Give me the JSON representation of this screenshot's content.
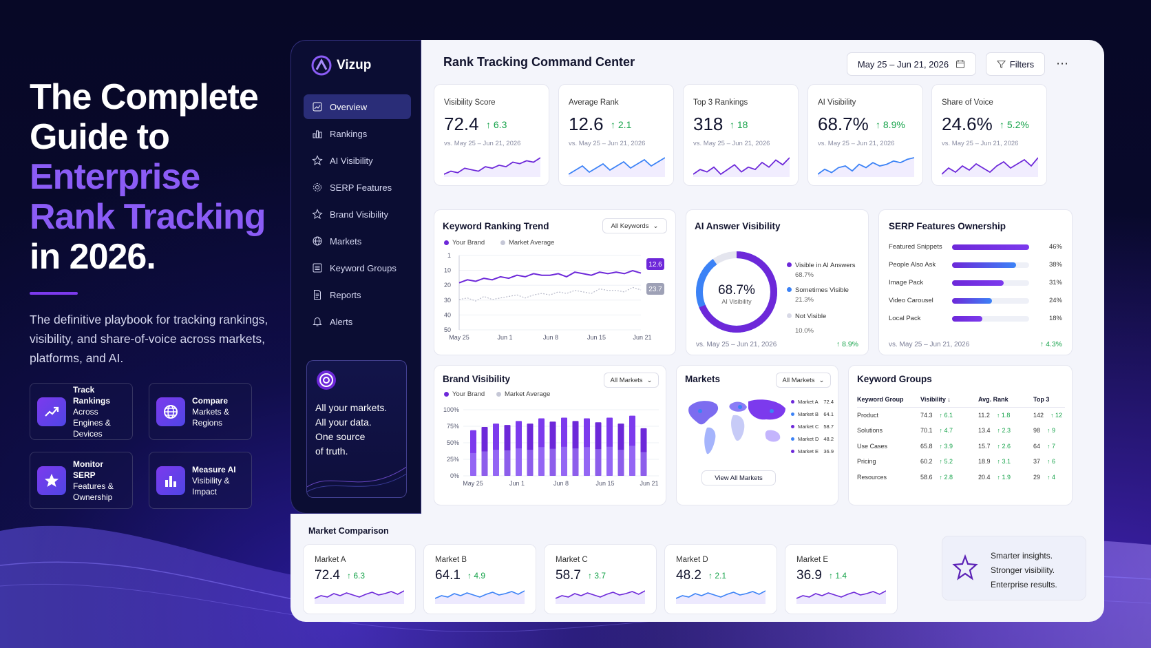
{
  "hero": {
    "title_line1": "The Complete",
    "title_line2": "Guide to",
    "title_accent1": "Enterprise",
    "title_accent2": "Rank Tracking",
    "title_line5": "in 2026.",
    "subtitle": "The definitive playbook for tracking rankings, visibility, and share-of-voice across markets, platforms, and AI.",
    "features": [
      {
        "title": "Track Rankings",
        "text": "Across Engines & Devices",
        "icon": "trend-up-icon"
      },
      {
        "title": "Compare",
        "text": "Markets & Regions",
        "icon": "globe-icon"
      },
      {
        "title": "Monitor SERP",
        "text": "Features & Ownership",
        "icon": "star-icon"
      },
      {
        "title": "Measure AI",
        "text": "Visibility & Impact",
        "icon": "bar-chart-icon"
      }
    ]
  },
  "app": {
    "name": "Vizup"
  },
  "sidebar": {
    "items": [
      {
        "label": "Overview",
        "icon": "dashboard-icon",
        "active": true
      },
      {
        "label": "Rankings",
        "icon": "bar-chart-icon"
      },
      {
        "label": "AI Visibility",
        "icon": "sparkle-icon"
      },
      {
        "label": "SERP Features",
        "icon": "gear-icon"
      },
      {
        "label": "Brand Visibility",
        "icon": "badge-icon"
      },
      {
        "label": "Markets",
        "icon": "globe-icon"
      },
      {
        "label": "Keyword Groups",
        "icon": "list-icon"
      },
      {
        "label": "Reports",
        "icon": "document-icon"
      },
      {
        "label": "Alerts",
        "icon": "bell-icon"
      }
    ],
    "promo": [
      "All your markets.",
      "All your data.",
      "One source",
      "of truth."
    ]
  },
  "header": {
    "title": "Rank Tracking Command Center",
    "date_range": "May 25 – Jun 21, 2026",
    "filters_label": "Filters"
  },
  "kpis": [
    {
      "label": "Visibility Score",
      "value": "72.4",
      "delta": "6.3",
      "vs": "vs. May 25 – Jun 21, 2026",
      "spark": [
        4,
        6,
        5,
        8,
        7,
        6,
        9,
        8,
        10,
        9,
        12,
        11,
        13,
        12,
        15
      ]
    },
    {
      "label": "Average Rank",
      "value": "12.6",
      "delta": "2.1",
      "vs": "vs. May 25 – Jun 21, 2026",
      "spark": [
        5,
        7,
        9,
        6,
        8,
        10,
        7,
        9,
        11,
        8,
        10,
        12,
        9,
        11,
        13
      ]
    },
    {
      "label": "Top 3 Rankings",
      "value": "318",
      "delta": "18",
      "vs": "vs. May 25 – Jun 21, 2026",
      "spark": [
        6,
        8,
        7,
        9,
        6,
        8,
        10,
        7,
        9,
        8,
        11,
        9,
        12,
        10,
        13
      ]
    },
    {
      "label": "AI Visibility",
      "value": "68.7%",
      "delta": "8.9%",
      "vs": "vs. May 25 – Jun 21, 2026",
      "spark": [
        5,
        8,
        6,
        9,
        10,
        7,
        11,
        9,
        12,
        10,
        11,
        13,
        12,
        14,
        15
      ]
    },
    {
      "label": "Share of Voice",
      "value": "24.6%",
      "delta": "5.2%",
      "vs": "vs. May 25 – Jun 21, 2026",
      "spark": [
        6,
        9,
        7,
        10,
        8,
        11,
        9,
        7,
        10,
        12,
        9,
        11,
        13,
        10,
        14
      ]
    }
  ],
  "keyword_trend": {
    "title": "Keyword Ranking Trend",
    "filter": "All Keywords",
    "legend": [
      "Your Brand",
      "Market Average"
    ],
    "y_ticks": [
      "1",
      "10",
      "20",
      "30",
      "40",
      "50"
    ],
    "x_ticks": [
      "May 25",
      "Jun 1",
      "Jun 8",
      "Jun 15",
      "Jun 21"
    ],
    "brand_label": "12.6",
    "avg_label": "23.7"
  },
  "ai_visibility": {
    "title": "AI Answer Visibility",
    "center_value": "68.7%",
    "center_label": "AI Visibility",
    "legend": [
      {
        "label": "Visible in AI Answers",
        "value": "68.7%",
        "color": "#6d28d9"
      },
      {
        "label": "Sometimes Visible",
        "value": "21.3%",
        "color": "#3b82f6"
      },
      {
        "label": "Not Visible",
        "value": "10.0%",
        "color": "#d8d9e6"
      }
    ],
    "footer": "vs. May 25 – Jun 21, 2026",
    "delta": "8.9%"
  },
  "serp": {
    "title": "SERP Features Ownership",
    "rows": [
      {
        "label": "Featured Snippets",
        "value": "46%",
        "pct": 0.46
      },
      {
        "label": "People Also Ask",
        "value": "38%",
        "pct": 0.38
      },
      {
        "label": "Image Pack",
        "value": "31%",
        "pct": 0.31
      },
      {
        "label": "Video Carousel",
        "value": "24%",
        "pct": 0.24
      },
      {
        "label": "Local Pack",
        "value": "18%",
        "pct": 0.18
      }
    ],
    "footer": "vs. May 25 – Jun 21, 2026",
    "delta": "4.3%"
  },
  "brand_visibility": {
    "title": "Brand Visibility",
    "filter": "All Markets",
    "legend": [
      "Your Brand",
      "Market Average"
    ],
    "y_ticks": [
      "100%",
      "75%",
      "50%",
      "25%",
      "0%"
    ],
    "x_ticks": [
      "May 25",
      "Jun 1",
      "Jun 8",
      "Jun 15",
      "Jun 21"
    ],
    "values": [
      0.69,
      0.74,
      0.79,
      0.77,
      0.83,
      0.79,
      0.87,
      0.82,
      0.88,
      0.83,
      0.87,
      0.81,
      0.88,
      0.79,
      0.91,
      0.72
    ]
  },
  "markets": {
    "title": "Markets",
    "filter": "All Markets",
    "items": [
      {
        "label": "Market A",
        "value": "72.4"
      },
      {
        "label": "Market B",
        "value": "64.1"
      },
      {
        "label": "Market C",
        "value": "58.7"
      },
      {
        "label": "Market D",
        "value": "48.2"
      },
      {
        "label": "Market E",
        "value": "36.9"
      }
    ],
    "view_all": "View All Markets"
  },
  "keyword_groups": {
    "title": "Keyword Groups",
    "headers": [
      "Keyword Group",
      "Visibility ↓",
      "Avg. Rank",
      "Top 3"
    ],
    "rows": [
      {
        "name": "Product",
        "vis": "74.3",
        "vis_d": "6.1",
        "rank": "11.2",
        "rank_d": "1.8",
        "top": "142",
        "top_d": "12"
      },
      {
        "name": "Solutions",
        "vis": "70.1",
        "vis_d": "4.7",
        "rank": "13.4",
        "rank_d": "2.3",
        "top": "98",
        "top_d": "9"
      },
      {
        "name": "Use Cases",
        "vis": "65.8",
        "vis_d": "3.9",
        "rank": "15.7",
        "rank_d": "2.6",
        "top": "64",
        "top_d": "7"
      },
      {
        "name": "Pricing",
        "vis": "60.2",
        "vis_d": "5.2",
        "rank": "18.9",
        "rank_d": "3.1",
        "top": "37",
        "top_d": "6"
      },
      {
        "name": "Resources",
        "vis": "58.6",
        "vis_d": "2.8",
        "rank": "20.4",
        "rank_d": "1.9",
        "top": "29",
        "top_d": "4"
      }
    ]
  },
  "market_comparison": {
    "title": "Market Comparison",
    "items": [
      {
        "name": "Market A",
        "value": "72.4",
        "delta": "6.3"
      },
      {
        "name": "Market B",
        "value": "64.1",
        "delta": "4.9"
      },
      {
        "name": "Market C",
        "value": "58.7",
        "delta": "3.7"
      },
      {
        "name": "Market D",
        "value": "48.2",
        "delta": "2.1"
      },
      {
        "name": "Market E",
        "value": "36.9",
        "delta": "1.4"
      }
    ],
    "insight": [
      "Smarter insights.",
      "Stronger visibility.",
      "Enterprise results."
    ]
  },
  "colors": {
    "accent": "#6d28d9",
    "blue": "#3b82f6",
    "green": "#16a34a"
  }
}
